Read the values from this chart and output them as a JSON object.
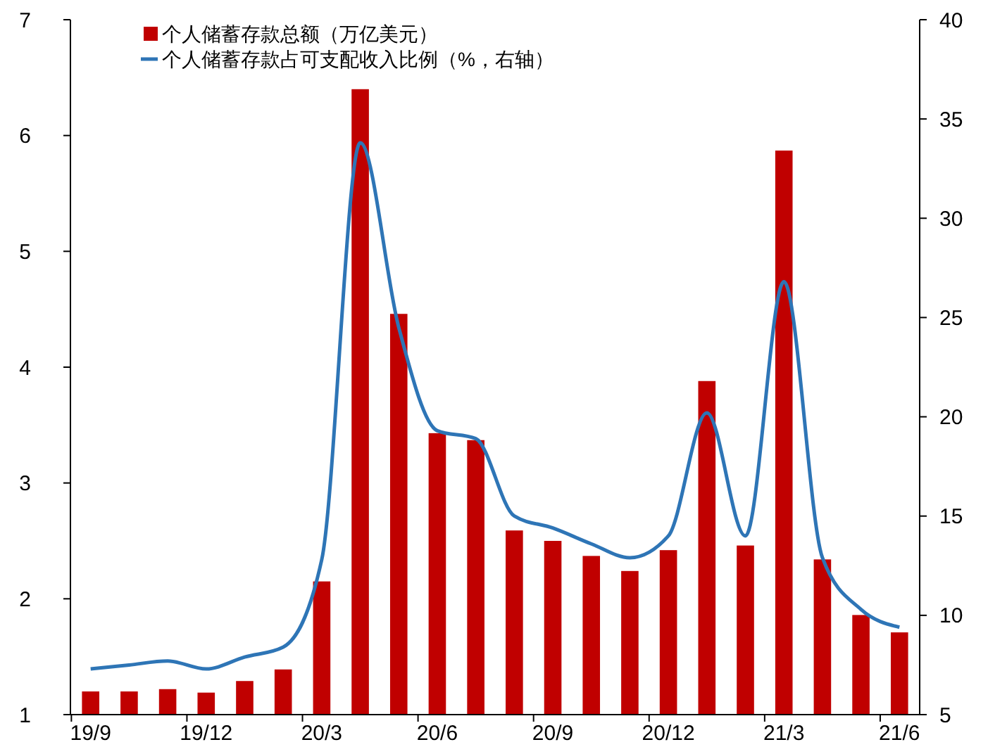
{
  "chart_data": {
    "type": "bar",
    "categories": [
      "19/9",
      null,
      null,
      "19/12",
      null,
      null,
      "20/3",
      null,
      null,
      "20/6",
      null,
      null,
      "20/9",
      null,
      null,
      "20/12",
      null,
      null,
      "21/3",
      null,
      null,
      "21/6"
    ],
    "series": [
      {
        "name": "个人储蓄存款总额（万亿美元）",
        "color": "#c00000",
        "values": [
          1.2,
          1.2,
          1.22,
          1.19,
          1.29,
          1.39,
          2.15,
          6.4,
          4.46,
          3.43,
          3.37,
          2.59,
          2.5,
          2.37,
          2.24,
          2.42,
          3.88,
          2.46,
          5.87,
          2.34,
          1.86,
          1.71
        ]
      },
      {
        "name": "个人储蓄存款占可支配收入比例（%，右轴）",
        "type": "line",
        "axis": "y2",
        "color": "#2e75b6",
        "values": [
          7.3,
          7.5,
          7.7,
          7.3,
          7.9,
          8.4,
          12.8,
          33.8,
          24.5,
          19.3,
          18.9,
          15.0,
          14.4,
          13.6,
          12.9,
          14.0,
          20.2,
          14.0,
          26.8,
          12.9,
          10.3,
          9.4
        ]
      }
    ],
    "ylim": [
      1,
      7
    ],
    "yticks": [
      1,
      2,
      3,
      4,
      5,
      6,
      7
    ],
    "y2lim": [
      5,
      40
    ],
    "y2ticks": [
      5,
      10,
      15,
      20,
      25,
      30,
      35,
      40
    ],
    "legend": "top left",
    "grid": false
  }
}
